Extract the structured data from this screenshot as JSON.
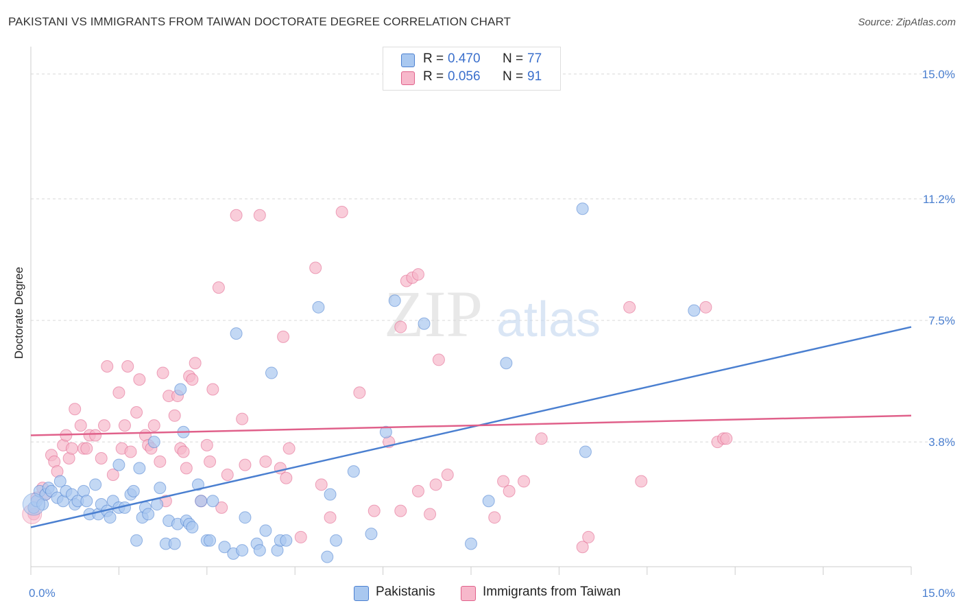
{
  "header": {
    "title": "PAKISTANI VS IMMIGRANTS FROM TAIWAN DOCTORATE DEGREE CORRELATION CHART",
    "source": "Source: ZipAtlas.com"
  },
  "watermark": {
    "zip": "ZIP",
    "atlas": "atlas"
  },
  "legend": {
    "rows": [
      {
        "r_label": "R =",
        "r_value": "0.470",
        "n_label": "N =",
        "n_value": "77",
        "color": "#a9c8f0"
      },
      {
        "r_label": "R =",
        "r_value": "0.056",
        "n_label": "N =",
        "n_value": "91",
        "color": "#f7b8cb"
      }
    ]
  },
  "bottom_legend": {
    "items": [
      {
        "label": "Pakistanis",
        "color": "#a9c8f0"
      },
      {
        "label": "Immigrants from Taiwan",
        "color": "#f7b8cb"
      }
    ]
  },
  "chart_data": {
    "type": "scatter",
    "ylabel": "Doctorate Degree",
    "xlim": [
      0,
      15
    ],
    "ylim": [
      0,
      15.5
    ],
    "x_tick_labels": [
      "0.0%",
      "15.0%"
    ],
    "y_ticks": [
      {
        "value": 3.8,
        "label": "3.8%"
      },
      {
        "value": 7.5,
        "label": "7.5%"
      },
      {
        "value": 11.2,
        "label": "11.2%"
      },
      {
        "value": 15.0,
        "label": "15.0%"
      }
    ],
    "grid": true,
    "colors": {
      "blue": "#4a7fd0",
      "pink": "#e0608a",
      "blue_fill": "#a9c8f0",
      "pink_fill": "#f7b8cb"
    },
    "series": [
      {
        "name": "Pakistanis",
        "trend": {
          "x": [
            0,
            15
          ],
          "y": [
            1.2,
            7.3
          ]
        },
        "points": [
          [
            0.05,
            1.8
          ],
          [
            0.1,
            2.0
          ],
          [
            0.15,
            2.3
          ],
          [
            0.2,
            1.9
          ],
          [
            0.25,
            2.2
          ],
          [
            0.3,
            2.4
          ],
          [
            0.35,
            2.3
          ],
          [
            0.45,
            2.1
          ],
          [
            0.5,
            2.6
          ],
          [
            0.55,
            2.0
          ],
          [
            0.6,
            2.3
          ],
          [
            0.7,
            2.2
          ],
          [
            0.75,
            1.9
          ],
          [
            0.8,
            2.0
          ],
          [
            0.9,
            2.3
          ],
          [
            0.95,
            2.0
          ],
          [
            1.0,
            1.6
          ],
          [
            1.1,
            2.5
          ],
          [
            1.15,
            1.6
          ],
          [
            1.2,
            1.9
          ],
          [
            1.3,
            1.7
          ],
          [
            1.35,
            1.5
          ],
          [
            1.4,
            2.0
          ],
          [
            1.5,
            1.8
          ],
          [
            1.5,
            3.1
          ],
          [
            1.6,
            1.8
          ],
          [
            1.7,
            2.2
          ],
          [
            1.75,
            2.3
          ],
          [
            1.8,
            0.8
          ],
          [
            1.85,
            3.0
          ],
          [
            1.9,
            1.5
          ],
          [
            1.95,
            1.8
          ],
          [
            2.0,
            1.6
          ],
          [
            2.1,
            3.8
          ],
          [
            2.15,
            1.9
          ],
          [
            2.2,
            2.4
          ],
          [
            2.3,
            0.7
          ],
          [
            2.35,
            1.4
          ],
          [
            2.45,
            0.7
          ],
          [
            2.5,
            1.3
          ],
          [
            2.55,
            5.4
          ],
          [
            2.6,
            4.1
          ],
          [
            2.65,
            1.4
          ],
          [
            2.7,
            1.3
          ],
          [
            2.75,
            1.2
          ],
          [
            2.85,
            2.5
          ],
          [
            2.9,
            2.0
          ],
          [
            3.0,
            0.8
          ],
          [
            3.05,
            0.8
          ],
          [
            3.1,
            2.0
          ],
          [
            3.3,
            0.6
          ],
          [
            3.45,
            0.4
          ],
          [
            3.5,
            7.1
          ],
          [
            3.6,
            0.5
          ],
          [
            3.65,
            1.5
          ],
          [
            3.85,
            0.7
          ],
          [
            3.9,
            0.5
          ],
          [
            4.0,
            1.1
          ],
          [
            4.1,
            5.9
          ],
          [
            4.2,
            0.5
          ],
          [
            4.25,
            0.8
          ],
          [
            4.35,
            0.8
          ],
          [
            4.9,
            7.9
          ],
          [
            5.05,
            0.3
          ],
          [
            5.1,
            2.2
          ],
          [
            5.2,
            0.8
          ],
          [
            5.5,
            2.9
          ],
          [
            5.8,
            1.0
          ],
          [
            6.05,
            4.1
          ],
          [
            6.2,
            8.1
          ],
          [
            6.7,
            7.4
          ],
          [
            7.5,
            0.7
          ],
          [
            7.8,
            2.0
          ],
          [
            8.1,
            6.2
          ],
          [
            9.4,
            10.9
          ],
          [
            9.45,
            3.5
          ],
          [
            11.3,
            7.8
          ]
        ]
      },
      {
        "name": "Immigrants from Taiwan",
        "trend": {
          "x": [
            0,
            15
          ],
          "y": [
            4.0,
            4.6
          ]
        },
        "points": [
          [
            0.05,
            1.6
          ],
          [
            0.1,
            2.1
          ],
          [
            0.2,
            2.4
          ],
          [
            0.25,
            2.2
          ],
          [
            0.35,
            3.4
          ],
          [
            0.4,
            3.2
          ],
          [
            0.45,
            2.9
          ],
          [
            0.55,
            3.7
          ],
          [
            0.6,
            4.0
          ],
          [
            0.65,
            3.3
          ],
          [
            0.7,
            3.6
          ],
          [
            0.75,
            4.8
          ],
          [
            0.85,
            4.3
          ],
          [
            0.9,
            3.6
          ],
          [
            0.95,
            3.6
          ],
          [
            1.0,
            4.0
          ],
          [
            1.1,
            4.0
          ],
          [
            1.2,
            3.3
          ],
          [
            1.25,
            4.3
          ],
          [
            1.3,
            6.1
          ],
          [
            1.4,
            2.8
          ],
          [
            1.5,
            5.3
          ],
          [
            1.55,
            3.6
          ],
          [
            1.6,
            4.3
          ],
          [
            1.65,
            6.1
          ],
          [
            1.7,
            3.5
          ],
          [
            1.8,
            4.7
          ],
          [
            1.85,
            5.7
          ],
          [
            1.95,
            4.0
          ],
          [
            2.0,
            3.7
          ],
          [
            2.05,
            3.6
          ],
          [
            2.1,
            4.3
          ],
          [
            2.2,
            3.2
          ],
          [
            2.25,
            5.9
          ],
          [
            2.3,
            2.0
          ],
          [
            2.35,
            5.2
          ],
          [
            2.45,
            4.6
          ],
          [
            2.5,
            5.2
          ],
          [
            2.55,
            3.6
          ],
          [
            2.6,
            3.5
          ],
          [
            2.65,
            3.0
          ],
          [
            2.7,
            5.8
          ],
          [
            2.75,
            5.7
          ],
          [
            2.8,
            6.2
          ],
          [
            2.9,
            2.0
          ],
          [
            3.0,
            3.7
          ],
          [
            3.05,
            3.2
          ],
          [
            3.1,
            5.4
          ],
          [
            3.2,
            8.5
          ],
          [
            3.25,
            1.8
          ],
          [
            3.35,
            2.8
          ],
          [
            3.5,
            10.7
          ],
          [
            3.6,
            4.5
          ],
          [
            3.65,
            3.1
          ],
          [
            3.9,
            10.7
          ],
          [
            4.0,
            3.2
          ],
          [
            4.25,
            3.0
          ],
          [
            4.3,
            7.0
          ],
          [
            4.35,
            2.7
          ],
          [
            4.4,
            3.6
          ],
          [
            4.6,
            0.9
          ],
          [
            4.85,
            9.1
          ],
          [
            4.95,
            2.5
          ],
          [
            5.1,
            1.5
          ],
          [
            5.3,
            10.8
          ],
          [
            5.6,
            5.3
          ],
          [
            5.85,
            1.7
          ],
          [
            6.1,
            3.8
          ],
          [
            6.3,
            1.7
          ],
          [
            6.3,
            7.3
          ],
          [
            6.4,
            8.7
          ],
          [
            6.5,
            8.8
          ],
          [
            6.6,
            8.9
          ],
          [
            6.6,
            2.3
          ],
          [
            6.8,
            1.6
          ],
          [
            6.9,
            2.5
          ],
          [
            6.95,
            6.3
          ],
          [
            7.1,
            2.8
          ],
          [
            7.9,
            1.5
          ],
          [
            8.05,
            2.6
          ],
          [
            8.15,
            2.3
          ],
          [
            8.4,
            2.6
          ],
          [
            8.7,
            3.9
          ],
          [
            9.4,
            0.6
          ],
          [
            9.5,
            0.9
          ],
          [
            10.2,
            7.9
          ],
          [
            10.4,
            2.6
          ],
          [
            11.5,
            7.9
          ],
          [
            11.7,
            3.8
          ],
          [
            11.8,
            3.9
          ],
          [
            11.85,
            3.9
          ]
        ]
      }
    ]
  }
}
